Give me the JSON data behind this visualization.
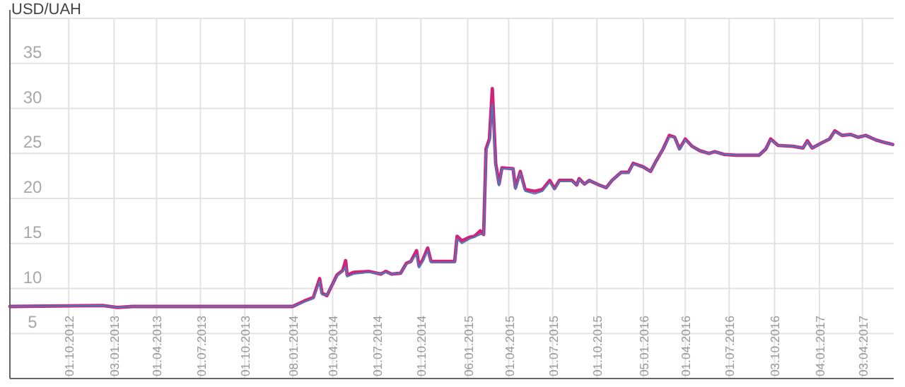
{
  "chart_data": {
    "type": "line",
    "ylabel": "USD/UAH",
    "xlim": [
      "2012-06-01",
      "2017-06-07"
    ],
    "xticks": [
      {
        "value": "2012-10-01",
        "label": "01.10.2012"
      },
      {
        "value": "2013-01-03",
        "label": "03.01.2013"
      },
      {
        "value": "2013-04-01",
        "label": "01.04.2013"
      },
      {
        "value": "2013-07-01",
        "label": "01.07.2013"
      },
      {
        "value": "2013-10-01",
        "label": "01.10.2013"
      },
      {
        "value": "2014-01-08",
        "label": "08.01.2014"
      },
      {
        "value": "2014-04-01",
        "label": "01.04.2014"
      },
      {
        "value": "2014-07-01",
        "label": "01.07.2014"
      },
      {
        "value": "2014-10-01",
        "label": "01.10.2014"
      },
      {
        "value": "2015-01-06",
        "label": "06.01.2015"
      },
      {
        "value": "2015-04-01",
        "label": "01.04.2015"
      },
      {
        "value": "2015-07-01",
        "label": "01.07.2015"
      },
      {
        "value": "2015-10-01",
        "label": "01.10.2015"
      },
      {
        "value": "2016-01-05",
        "label": "05.01.2016"
      },
      {
        "value": "2016-04-01",
        "label": "01.04.2016"
      },
      {
        "value": "2016-07-01",
        "label": "01.07.2016"
      },
      {
        "value": "2016-10-03",
        "label": "03.10.2016"
      },
      {
        "value": "2017-01-04",
        "label": "04.01.2017"
      },
      {
        "value": "2017-04-03",
        "label": "03.04.2017"
      }
    ],
    "ylim": [
      0,
      40
    ],
    "yticks": [
      {
        "value": 0,
        "label": null
      },
      5,
      10,
      15,
      20,
      25,
      30,
      35,
      {
        "value": 40,
        "label": null
      }
    ],
    "grid": true,
    "marker": "none",
    "line_style": "solid",
    "x": [
      "2012-06-01",
      "2012-12-10",
      "2013-01-10",
      "2013-02-10",
      "2014-01-08",
      "2014-02-01",
      "2014-02-20",
      "2014-03-05",
      "2014-03-10",
      "2014-03-20",
      "2014-04-10",
      "2014-04-22",
      "2014-04-28",
      "2014-05-01",
      "2014-05-15",
      "2014-06-15",
      "2014-07-10",
      "2014-07-20",
      "2014-08-01",
      "2014-08-20",
      "2014-09-01",
      "2014-09-10",
      "2014-09-22",
      "2014-09-27",
      "2014-10-05",
      "2014-10-15",
      "2014-10-22",
      "2014-11-15",
      "2014-12-10",
      "2014-12-15",
      "2014-12-25",
      "2015-01-10",
      "2015-01-20",
      "2015-02-01",
      "2015-02-08",
      "2015-02-13",
      "2015-02-20",
      "2015-02-26",
      "2015-03-05",
      "2015-03-12",
      "2015-03-18",
      "2015-04-10",
      "2015-04-15",
      "2015-04-25",
      "2015-05-05",
      "2015-05-25",
      "2015-06-10",
      "2015-06-25",
      "2015-07-05",
      "2015-07-15",
      "2015-08-10",
      "2015-08-20",
      "2015-08-25",
      "2015-09-05",
      "2015-09-15",
      "2015-10-05",
      "2015-10-20",
      "2015-11-01",
      "2015-11-20",
      "2015-12-05",
      "2015-12-15",
      "2016-01-05",
      "2016-01-20",
      "2016-02-01",
      "2016-02-15",
      "2016-02-28",
      "2016-03-10",
      "2016-03-20",
      "2016-04-01",
      "2016-04-15",
      "2016-05-01",
      "2016-05-20",
      "2016-06-01",
      "2016-06-20",
      "2016-07-15",
      "2016-09-01",
      "2016-09-15",
      "2016-09-25",
      "2016-10-10",
      "2016-11-10",
      "2016-12-01",
      "2016-12-10",
      "2016-12-20",
      "2017-01-10",
      "2017-01-25",
      "2017-02-05",
      "2017-02-20",
      "2017-03-10",
      "2017-03-25",
      "2017-04-10",
      "2017-05-01",
      "2017-05-20",
      "2017-06-05"
    ],
    "series": [
      {
        "color": "#4a7ab8",
        "values": [
          8.0,
          8.1,
          7.9,
          8.0,
          8.0,
          8.5,
          8.9,
          10.8,
          9.3,
          9.3,
          11.4,
          11.9,
          12.4,
          11.3,
          11.6,
          11.8,
          11.6,
          11.8,
          11.6,
          11.7,
          12.7,
          13.0,
          13.8,
          12.3,
          13.0,
          14.2,
          12.9,
          12.9,
          12.9,
          15.5,
          15.0,
          15.5,
          15.7,
          16.0,
          16.0,
          25.2,
          26.3,
          30.5,
          23.5,
          21.4,
          23.3,
          23.3,
          21.0,
          22.8,
          20.8,
          20.5,
          20.8,
          21.8,
          21.0,
          21.9,
          21.9,
          21.5,
          22.1,
          21.6,
          22.0,
          21.5,
          21.2,
          22.0,
          22.9,
          22.8,
          23.8,
          23.5,
          23.0,
          24.2,
          25.5,
          26.8,
          26.8,
          25.4,
          26.5,
          25.8,
          25.3,
          25.0,
          25.2,
          24.9,
          24.8,
          24.8,
          25.5,
          26.5,
          25.9,
          25.8,
          25.6,
          26.3,
          25.6,
          26.2,
          26.6,
          27.4,
          27.0,
          27.1,
          26.8,
          27.0,
          26.5,
          26.2,
          26.0
        ]
      },
      {
        "color": "#d2237a",
        "values": [
          8.0,
          8.1,
          7.9,
          8.0,
          8.0,
          8.6,
          9.0,
          11.1,
          9.5,
          9.2,
          11.5,
          12.0,
          13.1,
          11.5,
          11.8,
          11.9,
          11.6,
          11.9,
          11.6,
          11.7,
          12.8,
          13.0,
          14.2,
          12.5,
          13.2,
          14.5,
          13.0,
          13.0,
          13.0,
          15.8,
          15.3,
          15.7,
          15.8,
          16.4,
          16.0,
          25.5,
          26.6,
          32.2,
          23.9,
          21.6,
          23.4,
          23.3,
          21.2,
          23.0,
          21.0,
          20.8,
          21.0,
          22.0,
          21.1,
          22.0,
          22.0,
          21.5,
          22.2,
          21.6,
          22.0,
          21.5,
          21.2,
          22.0,
          22.9,
          22.9,
          23.9,
          23.5,
          23.0,
          24.2,
          25.5,
          27.0,
          26.8,
          25.5,
          26.6,
          25.8,
          25.3,
          25.0,
          25.2,
          24.9,
          24.8,
          24.8,
          25.5,
          26.6,
          25.9,
          25.8,
          25.6,
          26.4,
          25.6,
          26.2,
          26.6,
          27.5,
          27.0,
          27.1,
          26.8,
          27.0,
          26.5,
          26.2,
          26.0
        ]
      }
    ]
  }
}
